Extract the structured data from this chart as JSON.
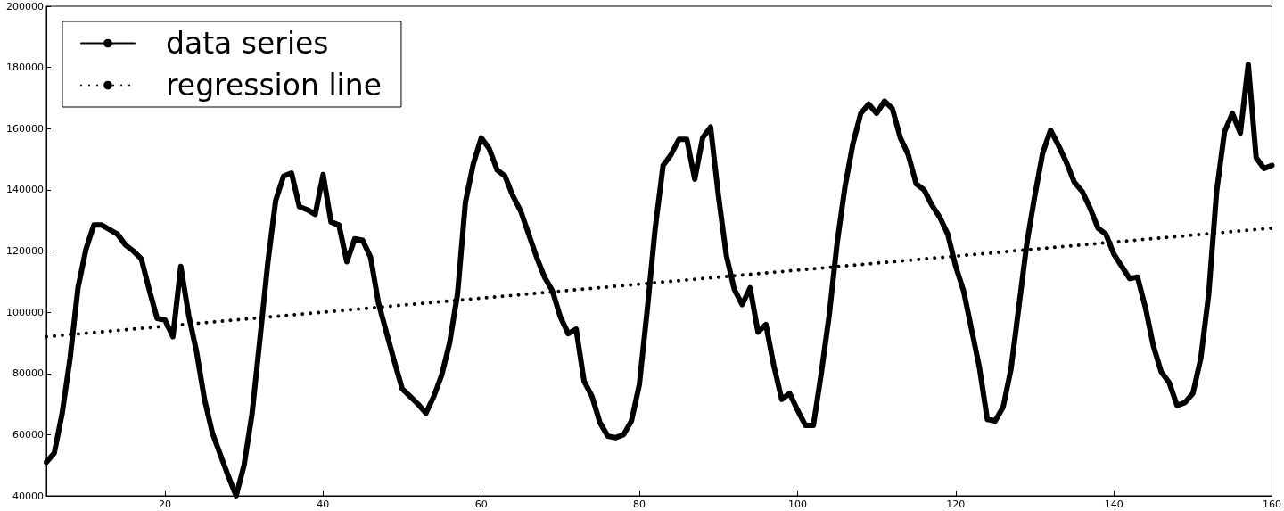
{
  "chart_data": {
    "type": "line",
    "legend": "top left",
    "grid": false,
    "marker": "none",
    "xlim": [
      5,
      160
    ],
    "xticks": [
      20,
      40,
      60,
      80,
      100,
      120,
      140,
      160
    ],
    "ylim": [
      40000,
      200000
    ],
    "yticks": [
      40000,
      60000,
      80000,
      100000,
      120000,
      140000,
      160000,
      180000,
      200000
    ],
    "series": [
      {
        "name": "data series",
        "color": "#000000",
        "line_style": "solid",
        "x": [
          5,
          6,
          7,
          8,
          9,
          10,
          11,
          12,
          13,
          14,
          15,
          16,
          17,
          18,
          19,
          20,
          21,
          22,
          23,
          24,
          25,
          26,
          27,
          28,
          29,
          30,
          31,
          32,
          33,
          34,
          35,
          36,
          37,
          38,
          39,
          40,
          41,
          42,
          43,
          44,
          45,
          46,
          47,
          48,
          49,
          50,
          51,
          52,
          53,
          54,
          55,
          56,
          57,
          58,
          59,
          60,
          61,
          62,
          63,
          64,
          65,
          66,
          67,
          68,
          69,
          70,
          71,
          72,
          73,
          74,
          75,
          76,
          77,
          78,
          79,
          80,
          81,
          82,
          83,
          84,
          85,
          86,
          87,
          88,
          89,
          90,
          91,
          92,
          93,
          94,
          95,
          96,
          97,
          98,
          99,
          100,
          101,
          102,
          103,
          104,
          105,
          106,
          107,
          108,
          109,
          110,
          111,
          112,
          113,
          114,
          115,
          116,
          117,
          118,
          119,
          120,
          121,
          122,
          123,
          124,
          125,
          126,
          127,
          128,
          129,
          130,
          131,
          132,
          133,
          134,
          135,
          136,
          137,
          138,
          139,
          140,
          141,
          142,
          143,
          144,
          145,
          146,
          147,
          148,
          149,
          150,
          151,
          152,
          153,
          154,
          155,
          156,
          157,
          158,
          159,
          160
        ],
        "values": [
          51000,
          54000,
          67000,
          85000,
          108000,
          120500,
          128500,
          128500,
          127000,
          125500,
          122000,
          120000,
          117500,
          107500,
          98000,
          97500,
          92000,
          115000,
          99000,
          87000,
          71500,
          60500,
          53500,
          46500,
          40000,
          50000,
          66500,
          91000,
          116000,
          136500,
          144500,
          145500,
          134500,
          133500,
          132000,
          145000,
          129500,
          128500,
          116500,
          124000,
          123500,
          118000,
          103000,
          93500,
          84000,
          75000,
          72500,
          70000,
          67000,
          72500,
          79500,
          90000,
          106000,
          136000,
          148500,
          157000,
          153500,
          146500,
          144500,
          138000,
          133000,
          125500,
          118000,
          111500,
          107000,
          98500,
          93000,
          94500,
          77500,
          72500,
          64000,
          59500,
          59000,
          60000,
          64500,
          76500,
          101000,
          127500,
          148000,
          151500,
          156500,
          156500,
          143500,
          157000,
          160500,
          138000,
          118500,
          107500,
          102500,
          108000,
          93500,
          96000,
          82500,
          71500,
          73500,
          68000,
          63000,
          63000,
          80000,
          99000,
          122500,
          141000,
          155000,
          165000,
          168000,
          165000,
          169000,
          166500,
          157000,
          151500,
          142000,
          140000,
          135000,
          131000,
          125500,
          115000,
          107000,
          94500,
          82000,
          65000,
          64500,
          69000,
          81500,
          102000,
          122500,
          138000,
          152000,
          159500,
          154500,
          149000,
          142500,
          139500,
          134000,
          127500,
          125500,
          119000,
          115000,
          111000,
          111500,
          101500,
          89000,
          80500,
          77000,
          69500,
          70500,
          73500,
          85000,
          106000,
          139500,
          159000,
          165000,
          158500,
          181000,
          150500,
          147000,
          148000
        ]
      },
      {
        "name": "regression line",
        "color": "#000000",
        "line_style": "dotted",
        "x": [
          5,
          160
        ],
        "values": [
          92000,
          127500
        ]
      }
    ]
  }
}
